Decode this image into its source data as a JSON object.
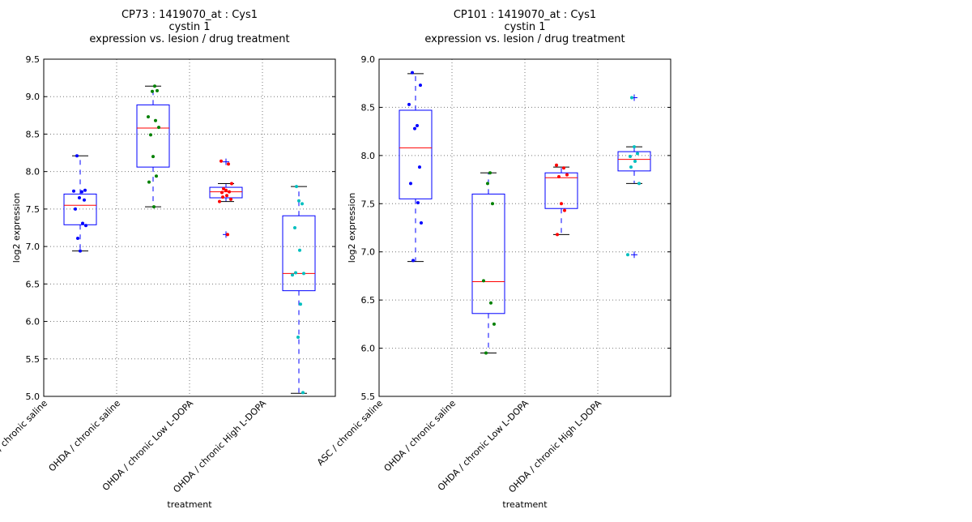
{
  "chart_data": [
    {
      "type": "box",
      "title_lines": [
        "CP73 : 1419070_at : Cys1",
        "cystin 1",
        "expression vs. lesion / drug treatment"
      ],
      "xlabel": "treatment",
      "ylabel": "log2 expression",
      "ylim": [
        5.0,
        9.5
      ],
      "yticks": [
        "5.0",
        "5.5",
        "6.0",
        "6.5",
        "7.0",
        "7.5",
        "8.0",
        "8.5",
        "9.0",
        "9.5"
      ],
      "grid": true,
      "categories": [
        "ASC / chronic saline",
        "OHDA / chronic saline",
        "OHDA / chronic Low L-DOPA",
        "OHDA / chronic High L-DOPA"
      ],
      "boxes": [
        {
          "whisker_low": 6.94,
          "q1": 7.29,
          "median": 7.55,
          "q3": 7.7,
          "whisker_high": 8.21,
          "outliers": [],
          "point_color": "#0000ff",
          "points": [
            8.21,
            7.75,
            7.74,
            7.73,
            7.65,
            7.62,
            7.5,
            7.31,
            7.28,
            7.11,
            6.94
          ]
        },
        {
          "whisker_low": 7.53,
          "q1": 8.06,
          "median": 8.58,
          "q3": 8.89,
          "whisker_high": 9.14,
          "outliers": [],
          "point_color": "#008000",
          "points": [
            9.14,
            9.07,
            9.08,
            8.73,
            8.68,
            8.59,
            8.49,
            8.2,
            7.94,
            7.86,
            7.53
          ]
        },
        {
          "whisker_low": 7.6,
          "q1": 7.65,
          "median": 7.73,
          "q3": 7.79,
          "whisker_high": 7.84,
          "outliers": [
            8.13,
            7.16
          ],
          "point_color": "#ff0000",
          "points": [
            8.14,
            8.1,
            7.84,
            7.77,
            7.75,
            7.73,
            7.72,
            7.68,
            7.66,
            7.63,
            7.6,
            7.16
          ]
        },
        {
          "whisker_low": 5.04,
          "q1": 6.41,
          "median": 6.64,
          "q3": 7.41,
          "whisker_high": 7.8,
          "outliers": [],
          "point_color": "#00bfbf",
          "points": [
            7.8,
            7.61,
            7.57,
            7.25,
            6.95,
            6.65,
            6.64,
            6.62,
            6.23,
            5.79,
            5.05
          ]
        }
      ]
    },
    {
      "type": "box",
      "title_lines": [
        "CP101 : 1419070_at : Cys1",
        "cystin 1",
        "expression vs. lesion / drug treatment"
      ],
      "xlabel": "treatment",
      "ylabel": "log2 expression",
      "ylim": [
        5.5,
        9.0
      ],
      "yticks": [
        "5.5",
        "6.0",
        "6.5",
        "7.0",
        "7.5",
        "8.0",
        "8.5",
        "9.0"
      ],
      "grid": true,
      "categories": [
        "ASC / chronic saline",
        "OHDA / chronic saline",
        "OHDA / chronic Low L-DOPA",
        "OHDA / chronic High L-DOPA"
      ],
      "boxes": [
        {
          "whisker_low": 6.9,
          "q1": 7.55,
          "median": 8.08,
          "q3": 8.47,
          "whisker_high": 8.85,
          "outliers": [],
          "point_color": "#0000ff",
          "points": [
            8.86,
            8.73,
            8.53,
            8.31,
            8.28,
            7.88,
            7.71,
            7.51,
            7.3,
            6.91
          ]
        },
        {
          "whisker_low": 5.95,
          "q1": 6.36,
          "median": 6.69,
          "q3": 7.6,
          "whisker_high": 7.82,
          "outliers": [],
          "point_color": "#008000",
          "points": [
            7.82,
            7.71,
            7.5,
            6.7,
            6.47,
            6.25,
            5.95
          ]
        },
        {
          "whisker_low": 7.18,
          "q1": 7.45,
          "median": 7.77,
          "q3": 7.82,
          "whisker_high": 7.88,
          "outliers": [],
          "point_color": "#ff0000",
          "points": [
            7.9,
            7.87,
            7.8,
            7.78,
            7.5,
            7.43,
            7.18
          ]
        },
        {
          "whisker_low": 7.71,
          "q1": 7.84,
          "median": 7.96,
          "q3": 8.04,
          "whisker_high": 8.09,
          "outliers": [
            8.6,
            6.97
          ],
          "point_color": "#00bfbf",
          "points": [
            8.6,
            8.09,
            8.02,
            7.99,
            7.94,
            7.88,
            7.71,
            6.97
          ]
        }
      ]
    }
  ]
}
